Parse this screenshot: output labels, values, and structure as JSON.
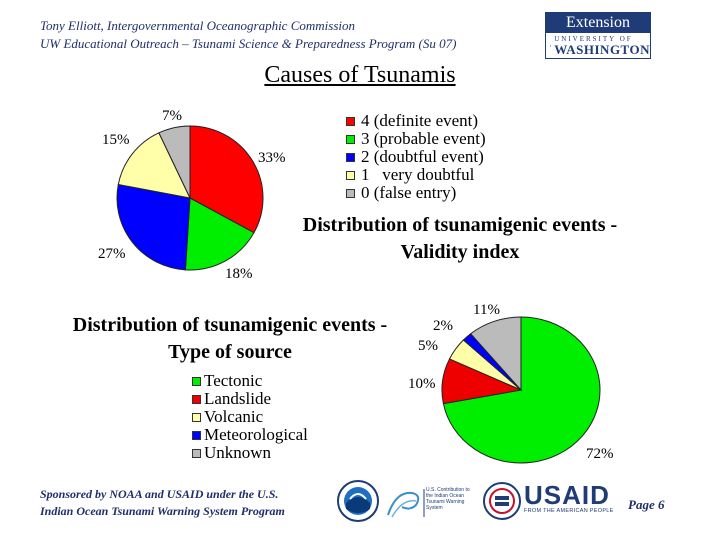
{
  "header": {
    "line1": "Tony Elliott, Intergovernmental Oceanographic Commission",
    "line2": "UW Educational Outreach – Tsunami Science & Preparedness Program (Su 07)"
  },
  "logo": {
    "top": "Extension",
    "university": "UNIVERSITY OF",
    "name": "WASHINGTON"
  },
  "title": "Causes of Tsunamis",
  "validity": {
    "heading": "Distribution of tsunamigenic events - Validity index",
    "legend": [
      {
        "label": "4 (definite event)",
        "color": "#ff0000"
      },
      {
        "label": "3 (probable event)",
        "color": "#00ee00"
      },
      {
        "label": "2 (doubtful event)",
        "color": "#0000ff"
      },
      {
        "label": "1   very doubtful",
        "color": "#ffffaa"
      },
      {
        "label": "0 (false entry)",
        "color": "#bbbbbb"
      }
    ],
    "slices": [
      {
        "value": 33,
        "label": "33%",
        "color": "#ff0000"
      },
      {
        "value": 18,
        "label": "18%",
        "color": "#00ee00"
      },
      {
        "value": 27,
        "label": "27%",
        "color": "#0000ff"
      },
      {
        "value": 15,
        "label": "15%",
        "color": "#ffffaa"
      },
      {
        "value": 7,
        "label": "7%",
        "color": "#bbbbbb"
      }
    ]
  },
  "source": {
    "heading": "Distribution of tsunamigenic events - Type of source",
    "legend": [
      {
        "label": "Tectonic",
        "color": "#00ee00"
      },
      {
        "label": "Landslide",
        "color": "#ee0000"
      },
      {
        "label": "Volcanic",
        "color": "#ffffaa"
      },
      {
        "label": "Meteorological",
        "color": "#0000ff"
      },
      {
        "label": "Unknown",
        "color": "#bbbbbb"
      }
    ],
    "slices": [
      {
        "value": 72,
        "label": "72%",
        "color": "#00ee00"
      },
      {
        "value": 10,
        "label": "10%",
        "color": "#ee0000"
      },
      {
        "value": 5,
        "label": "5%",
        "color": "#ffffaa"
      },
      {
        "value": 2,
        "label": "2%",
        "color": "#0000ff"
      },
      {
        "value": 11,
        "label": "11%",
        "color": "#bbbbbb"
      }
    ]
  },
  "footer": {
    "line1": "Sponsored by NOAA and USAID under the U.S.",
    "line2": "Indian Ocean Tsunami Warning System Program",
    "page_label": "Page",
    "page_number": "6",
    "logos": [
      "noaa-logo",
      "ioc-tsunami-logo",
      "usaid-seal-logo",
      "usaid-logo"
    ],
    "ioc_text": "U.S. Contribution to the Indian Ocean Tsunami Warning System",
    "usaid_name": "USAID",
    "usaid_tagline": "FROM THE AMERICAN PEOPLE"
  }
}
